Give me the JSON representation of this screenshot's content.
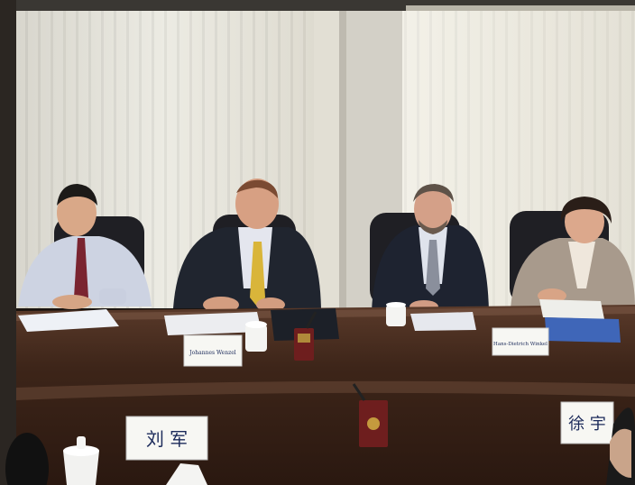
{
  "scene": {
    "description_colors": {
      "curtain": "#e9e6dc",
      "table": "#3a2418",
      "table_highlight": "#6b4a38",
      "chair": "#1e1e22",
      "suit_dark": "#1f2430",
      "shirt_light": "#cfd6e6",
      "tie_gold": "#d9b53a",
      "tie_red": "#7a2430",
      "jacket_beige": "#a89a8c"
    },
    "name_cards": {
      "card_left_center": "Johannes Wenzel",
      "card_right_center": "Hans-Dietrich Winkel",
      "card_front_left": "刘 军",
      "card_front_right": "徐 宇"
    }
  }
}
